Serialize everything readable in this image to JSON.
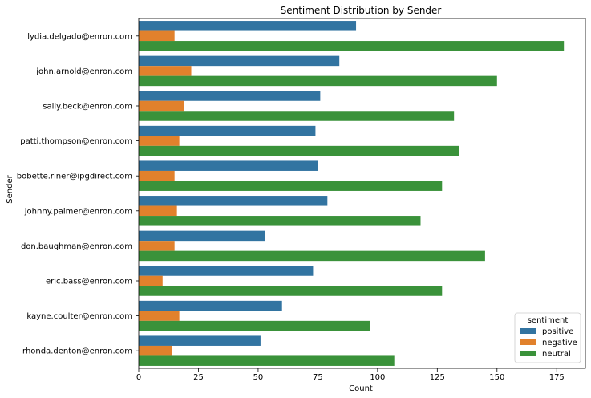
{
  "chart_data": {
    "type": "bar",
    "orientation": "horizontal",
    "title": "Sentiment Distribution by Sender",
    "xlabel": "Count",
    "ylabel": "Sender",
    "xlim": [
      0,
      187
    ],
    "xticks": [
      "0",
      "25",
      "50",
      "75",
      "100",
      "125",
      "150",
      "175"
    ],
    "xtick_values": [
      0,
      25,
      50,
      75,
      100,
      125,
      150,
      175
    ],
    "grid": false,
    "legend": {
      "title": "sentiment",
      "placement": "lower-right"
    },
    "categories": [
      "lydia.delgado@enron.com",
      "john.arnold@enron.com",
      "sally.beck@enron.com",
      "patti.thompson@enron.com",
      "bobette.riner@ipgdirect.com",
      "johnny.palmer@enron.com",
      "don.baughman@enron.com",
      "eric.bass@enron.com",
      "kayne.coulter@enron.com",
      "rhonda.denton@enron.com"
    ],
    "series": [
      {
        "name": "positive",
        "color": "#3274a1",
        "values": [
          91,
          84,
          76,
          74,
          75,
          79,
          53,
          73,
          60,
          51
        ]
      },
      {
        "name": "negative",
        "color": "#e1812c",
        "values": [
          15,
          22,
          19,
          17,
          15,
          16,
          15,
          10,
          17,
          14
        ]
      },
      {
        "name": "neutral",
        "color": "#3a923a",
        "values": [
          178,
          150,
          132,
          134,
          127,
          118,
          145,
          127,
          97,
          107
        ]
      }
    ]
  }
}
